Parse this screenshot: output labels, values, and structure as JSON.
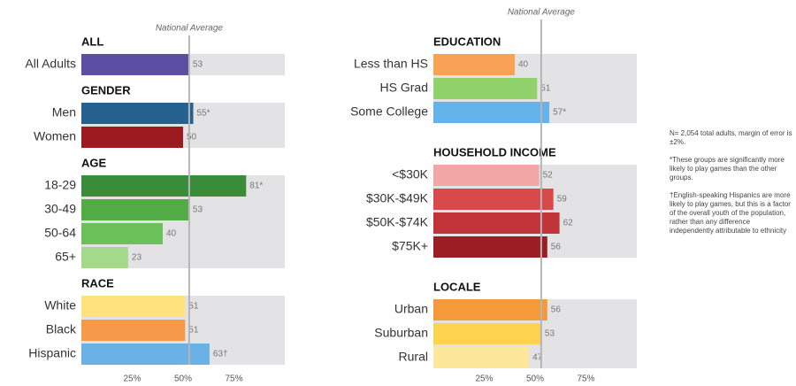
{
  "chart_data": [
    {
      "type": "bar",
      "annotation": "National Average",
      "reference": 53,
      "xlim": [
        0,
        100
      ],
      "xticks": [
        {
          "value": 25,
          "label": "25%"
        },
        {
          "value": 50,
          "label": "50%"
        },
        {
          "value": 75,
          "label": "75%"
        }
      ],
      "groups": [
        {
          "name": "ALL",
          "categories": [
            "All Adults"
          ],
          "values": [
            53
          ],
          "value_labels": [
            "53"
          ],
          "colors": [
            "#5b4ea3"
          ]
        },
        {
          "name": "GENDER",
          "categories": [
            "Men",
            "Women"
          ],
          "values": [
            55,
            50
          ],
          "value_labels": [
            "55*",
            "50"
          ],
          "colors": [
            "#25618f",
            "#9b1b20"
          ]
        },
        {
          "name": "AGE",
          "categories": [
            "18-29",
            "30-49",
            "50-64",
            "65+"
          ],
          "values": [
            81,
            53,
            40,
            23
          ],
          "value_labels": [
            "81*",
            "53",
            "40",
            "23"
          ],
          "colors": [
            "#3a8c3a",
            "#53ab47",
            "#6cc05a",
            "#a5d98a"
          ]
        },
        {
          "name": "RACE",
          "categories": [
            "White",
            "Black",
            "Hispanic"
          ],
          "values": [
            51,
            51,
            63
          ],
          "value_labels": [
            "51",
            "51",
            "63†"
          ],
          "colors": [
            "#fde27e",
            "#f5994a",
            "#6ab2e6"
          ]
        }
      ]
    },
    {
      "type": "bar",
      "annotation": "National Average",
      "reference": 53,
      "xlim": [
        0,
        100
      ],
      "xticks": [
        {
          "value": 25,
          "label": "25%"
        },
        {
          "value": 50,
          "label": "50%"
        },
        {
          "value": 75,
          "label": "75%"
        }
      ],
      "groups": [
        {
          "name": "EDUCATION",
          "categories": [
            "Less than HS",
            "HS Grad",
            "Some College"
          ],
          "values": [
            40,
            51,
            57
          ],
          "value_labels": [
            "40",
            "51",
            "57*"
          ],
          "colors": [
            "#f7a254",
            "#90d16a",
            "#64b3ea"
          ]
        },
        {
          "name": "HOUSEHOLD INCOME",
          "categories": [
            "<$30K",
            "$30K-$49K",
            "$50K-$74K",
            "$75K+"
          ],
          "values": [
            52,
            59,
            62,
            56
          ],
          "value_labels": [
            "52",
            "59",
            "62",
            "56"
          ],
          "colors": [
            "#f2a7a7",
            "#d84a4a",
            "#c0343a",
            "#9d1d25"
          ]
        },
        {
          "name": "LOCALE",
          "categories": [
            "Urban",
            "Suburban",
            "Rural"
          ],
          "values": [
            56,
            53,
            47
          ],
          "value_labels": [
            "56",
            "53",
            "47"
          ],
          "colors": [
            "#f59a3a",
            "#fcd44d",
            "#fde79a"
          ]
        }
      ]
    }
  ],
  "notes": [
    "N= 2,054 total adults, margin of error is ±2%.",
    "*These groups are significantly more likely to play games than the other groups.",
    "†English-speaking Hispanics are more likely to play games, but this is a factor of the overall youth of the population, rather than any difference independently attributable to ethnicity"
  ]
}
